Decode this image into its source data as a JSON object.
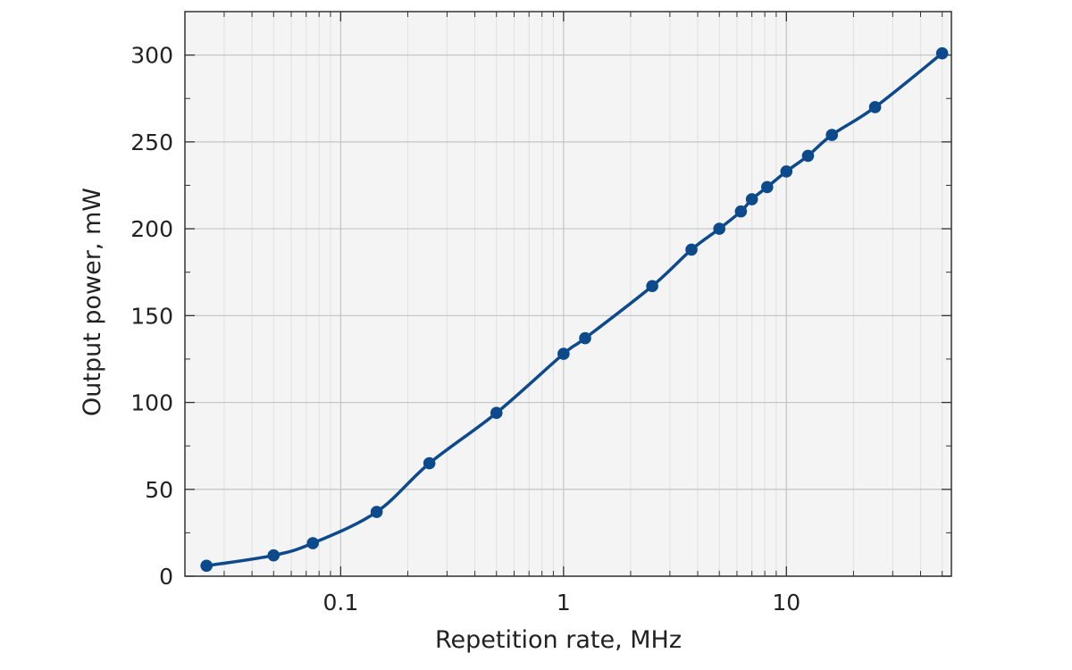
{
  "chart_data": {
    "type": "line",
    "xlabel": "Repetition rate, MHz",
    "ylabel": "Output power, mW",
    "x_scale": "log",
    "xlim": [
      0.02,
      55
    ],
    "ylim": [
      0,
      325
    ],
    "grid": true,
    "x_ticks": [
      {
        "value": 0.1,
        "label": "0.1"
      },
      {
        "value": 1,
        "label": "1"
      },
      {
        "value": 10,
        "label": "10"
      }
    ],
    "y_ticks": [
      {
        "value": 0,
        "label": "0"
      },
      {
        "value": 50,
        "label": "50"
      },
      {
        "value": 100,
        "label": "100"
      },
      {
        "value": 150,
        "label": "150"
      },
      {
        "value": 200,
        "label": "200"
      },
      {
        "value": 250,
        "label": "250"
      },
      {
        "value": 300,
        "label": "300"
      }
    ],
    "series": [
      {
        "color": "#0d4a8c",
        "marker": "circle",
        "x": [
          0.025,
          0.05,
          0.075,
          0.145,
          0.25,
          0.5,
          1.0,
          1.25,
          2.5,
          3.75,
          5.0,
          6.25,
          7.0,
          8.2,
          10.0,
          12.5,
          16.0,
          25.0,
          50.0
        ],
        "y": [
          6,
          12,
          19,
          37,
          65,
          94,
          128,
          137,
          167,
          188,
          200,
          210,
          217,
          224,
          233,
          242,
          254,
          270,
          301
        ]
      }
    ]
  },
  "colors": {
    "plot_background": "#f4f4f4",
    "grid_major": "#c4c4c4",
    "grid_minor": "#e1e1e1",
    "frame": "#333333"
  }
}
